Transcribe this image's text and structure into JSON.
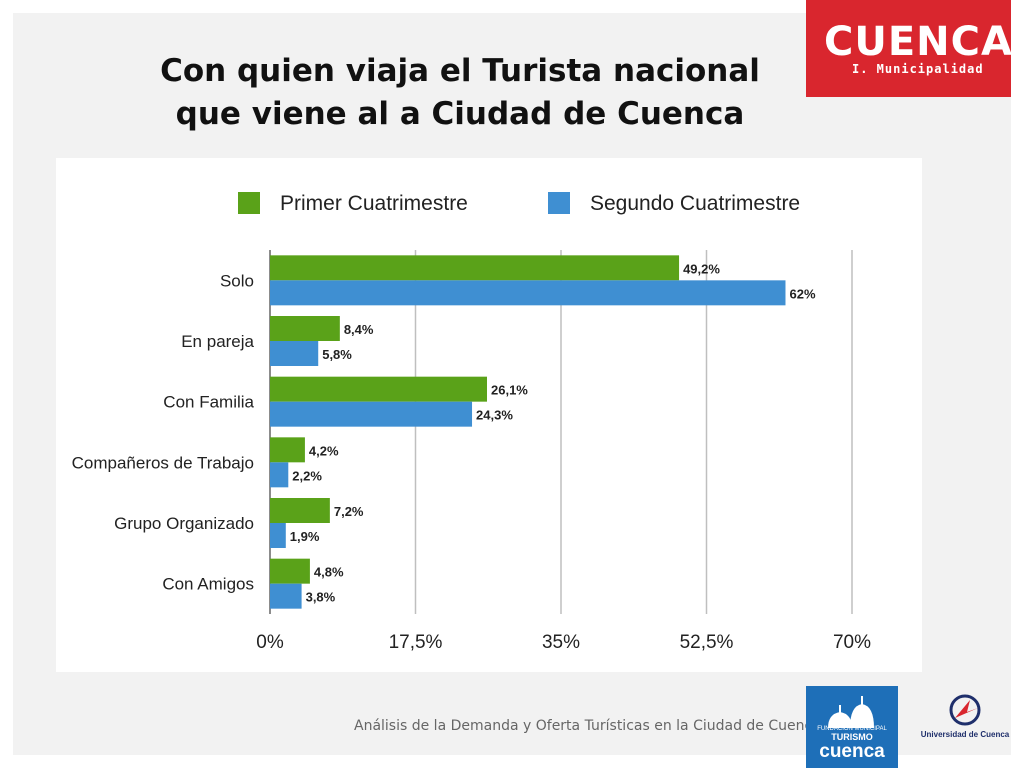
{
  "title": {
    "line1": "Con quien viaja el Turista nacional",
    "line2": "que viene al a Ciudad de Cuenca"
  },
  "logo": {
    "main": "CUENCA",
    "sub": "I. Municipalidad",
    "color": "#d9262e"
  },
  "footer": {
    "text": "Análisis de la Demanda y Oferta Turísticas en la Ciudad de Cuenca",
    "turismo_mini": "FUNDACIÓN MUNICIPAL",
    "turismo_word": "TURISMO",
    "turismo_brand": "cuenca",
    "university": "Universidad de Cuenca"
  },
  "chart_data": {
    "type": "bar",
    "orientation": "horizontal",
    "categories": [
      "Solo",
      "En pareja",
      "Con Familia",
      "Compañeros de Trabajo",
      "Grupo Organizado",
      "Con Amigos"
    ],
    "series": [
      {
        "name": "Primer Cuatrimestre",
        "color": "#5aa219",
        "values": [
          49.2,
          8.4,
          26.1,
          4.2,
          7.2,
          4.8
        ],
        "labels": [
          "49,2%",
          "8,4%",
          "26,1%",
          "4,2%",
          "7,2%",
          "4,8%"
        ]
      },
      {
        "name": "Segundo Cuatrimestre",
        "color": "#3f8fd2",
        "values": [
          62,
          5.8,
          24.3,
          2.2,
          1.9,
          3.8
        ],
        "labels": [
          "62%",
          "5,8%",
          "24,3%",
          "2,2%",
          "1,9%",
          "3,8%"
        ]
      }
    ],
    "xlim": [
      0,
      70
    ],
    "xticks": [
      0,
      17.5,
      35,
      52.5,
      70
    ],
    "xtick_labels": [
      "0%",
      "17,5%",
      "35%",
      "52,5%",
      "70%"
    ],
    "grid": true,
    "legend": "top"
  }
}
